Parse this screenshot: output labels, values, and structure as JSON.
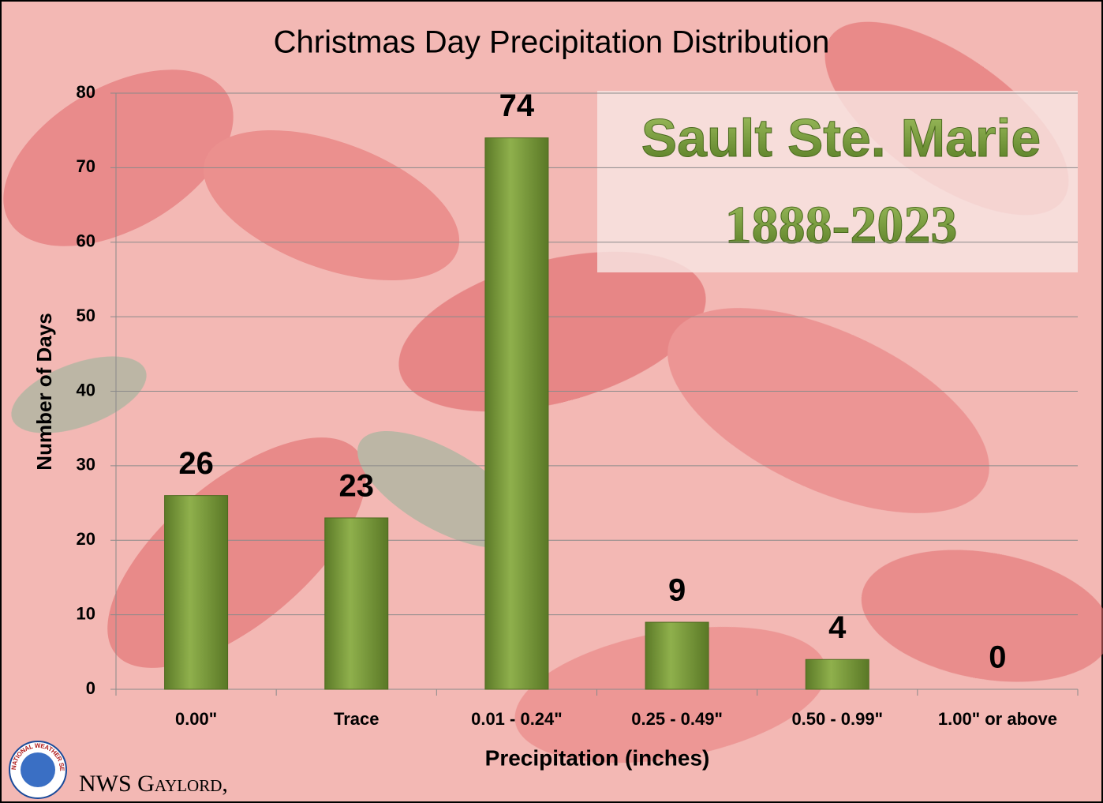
{
  "chart_data": {
    "type": "bar",
    "title": "Christmas Day Precipitation Distribution",
    "annotation": [
      "Sault Ste. Marie",
      "1888-2023"
    ],
    "x_label": "Precipitation (inches)",
    "y_label": "Number of Days",
    "categories": [
      "0.00\"",
      "Trace",
      "0.01 - 0.24\"",
      "0.25 - 0.49\"",
      "0.50 - 0.99\"",
      "1.00\" or above"
    ],
    "values": [
      26,
      23,
      74,
      9,
      4,
      0
    ],
    "color": "#77983a",
    "ylim": [
      0,
      80
    ],
    "yticks": [
      0,
      10,
      20,
      30,
      40,
      50,
      60,
      70,
      80
    ],
    "grid": true,
    "footer": "NWS Gaylord,",
    "logo_text": "NATIONAL WEATHER SERVICE"
  }
}
